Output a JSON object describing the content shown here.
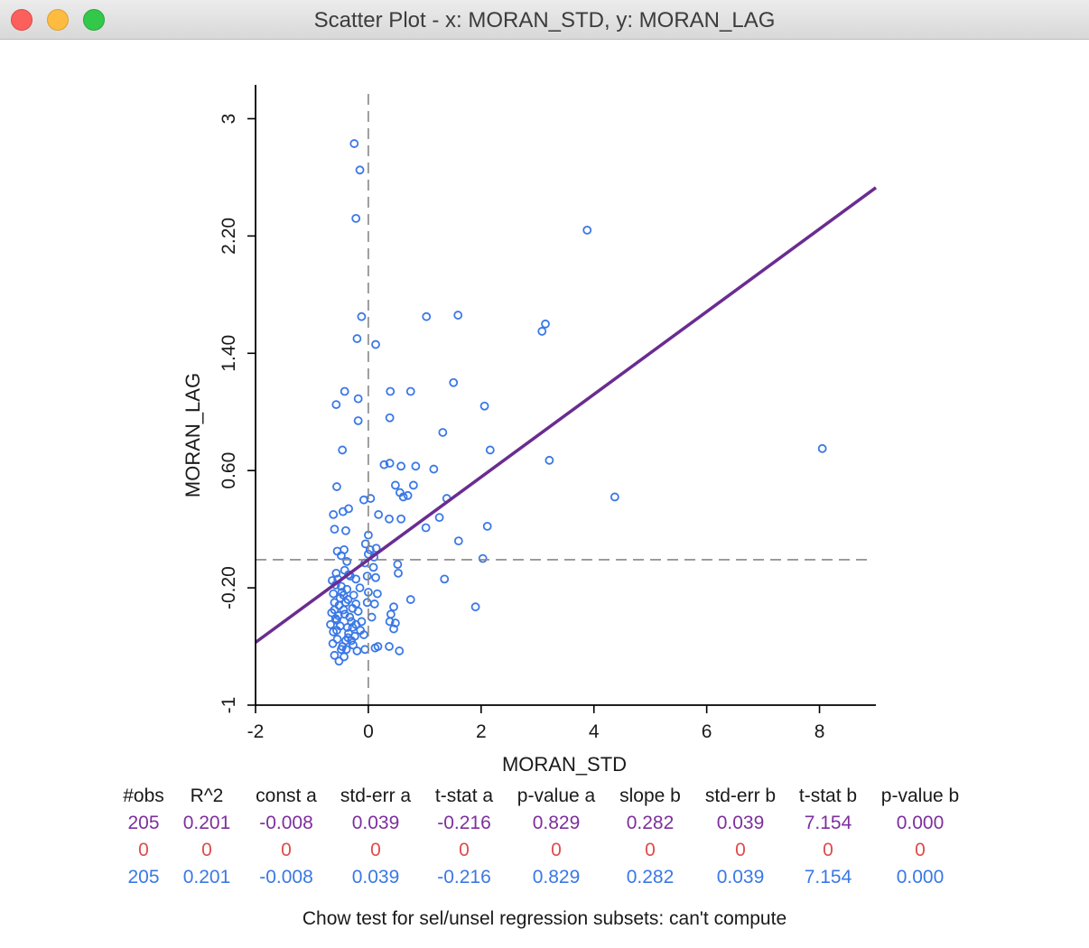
{
  "window": {
    "title": "Scatter Plot - x: MORAN_STD, y: MORAN_LAG"
  },
  "colors": {
    "points": "#3a78e6",
    "regression_line": "#6a2c91",
    "dashed_axes": "#888888",
    "row_all": "#7d2f9e",
    "row_selected": "#e04a4a",
    "row_unselected": "#3a78e6"
  },
  "chart_data": {
    "type": "scatter",
    "xlabel": "MORAN_STD",
    "ylabel": "MORAN_LAG",
    "xlim": [
      -2,
      9
    ],
    "ylim": [
      -1,
      3.2
    ],
    "x_ticks": [
      "-2",
      "0",
      "2",
      "4",
      "6",
      "8"
    ],
    "x_tick_values": [
      -2,
      0,
      2,
      4,
      6,
      8
    ],
    "y_ticks": [
      "-1",
      "-0.20",
      "0.60",
      "1.40",
      "2.20",
      "3"
    ],
    "y_tick_values": [
      -1,
      -0.2,
      0.6,
      1.4,
      2.2,
      3
    ],
    "mean_x": 0,
    "mean_y": -0.008,
    "regression": {
      "intercept": -0.008,
      "slope": 0.282
    },
    "points": [
      [
        -0.25,
        2.83
      ],
      [
        -0.15,
        2.65
      ],
      [
        -0.22,
        2.32
      ],
      [
        3.88,
        2.24
      ],
      [
        -0.12,
        1.65
      ],
      [
        1.03,
        1.65
      ],
      [
        1.59,
        1.66
      ],
      [
        3.14,
        1.6
      ],
      [
        3.08,
        1.55
      ],
      [
        -0.2,
        1.5
      ],
      [
        0.13,
        1.46
      ],
      [
        -0.42,
        1.14
      ],
      [
        -0.57,
        1.05
      ],
      [
        -0.18,
        1.09
      ],
      [
        0.39,
        1.14
      ],
      [
        0.75,
        1.14
      ],
      [
        1.51,
        1.2
      ],
      [
        2.06,
        1.04
      ],
      [
        0.38,
        0.96
      ],
      [
        -0.18,
        0.94
      ],
      [
        1.32,
        0.86
      ],
      [
        -0.46,
        0.74
      ],
      [
        2.16,
        0.74
      ],
      [
        8.05,
        0.75
      ],
      [
        0.28,
        0.64
      ],
      [
        0.38,
        0.65
      ],
      [
        0.58,
        0.63
      ],
      [
        0.84,
        0.63
      ],
      [
        1.16,
        0.61
      ],
      [
        3.21,
        0.67
      ],
      [
        -0.56,
        0.49
      ],
      [
        0.48,
        0.5
      ],
      [
        0.8,
        0.5
      ],
      [
        0.56,
        0.45
      ],
      [
        0.7,
        0.43
      ],
      [
        0.62,
        0.42
      ],
      [
        1.39,
        0.41
      ],
      [
        4.37,
        0.42
      ],
      [
        -0.08,
        0.4
      ],
      [
        0.04,
        0.41
      ],
      [
        -0.35,
        0.34
      ],
      [
        -0.45,
        0.32
      ],
      [
        -0.62,
        0.3
      ],
      [
        0.18,
        0.3
      ],
      [
        0.37,
        0.27
      ],
      [
        0.58,
        0.27
      ],
      [
        1.26,
        0.28
      ],
      [
        -0.6,
        0.2
      ],
      [
        -0.4,
        0.19
      ],
      [
        1.02,
        0.21
      ],
      [
        2.11,
        0.22
      ],
      [
        0.0,
        0.16
      ],
      [
        -0.05,
        0.1
      ],
      [
        0.03,
        0.06
      ],
      [
        1.6,
        0.12
      ],
      [
        0.14,
        0.07
      ],
      [
        -0.55,
        0.05
      ],
      [
        -0.43,
        0.06
      ],
      [
        -0.48,
        0.02
      ],
      [
        0.0,
        0.03
      ],
      [
        0.1,
        0.01
      ],
      [
        2.03,
        0.0
      ],
      [
        -0.38,
        -0.02
      ],
      [
        -0.06,
        -0.03
      ],
      [
        0.52,
        -0.04
      ],
      [
        0.09,
        -0.06
      ],
      [
        -0.57,
        -0.1
      ],
      [
        -0.35,
        -0.11
      ],
      [
        0.53,
        -0.1
      ],
      [
        -0.02,
        -0.12
      ],
      [
        0.13,
        -0.13
      ],
      [
        -0.22,
        -0.14
      ],
      [
        1.35,
        -0.14
      ],
      [
        -0.58,
        -0.18
      ],
      [
        -0.48,
        -0.19
      ],
      [
        -0.15,
        -0.2
      ],
      [
        -0.62,
        -0.24
      ],
      [
        -0.44,
        -0.25
      ],
      [
        0.0,
        -0.23
      ],
      [
        0.16,
        -0.24
      ],
      [
        -0.36,
        -0.28
      ],
      [
        -0.02,
        -0.3
      ],
      [
        0.75,
        -0.28
      ],
      [
        -0.6,
        -0.3
      ],
      [
        -0.52,
        -0.32
      ],
      [
        -0.28,
        -0.34
      ],
      [
        0.11,
        -0.31
      ],
      [
        -0.65,
        -0.37
      ],
      [
        -0.42,
        -0.38
      ],
      [
        -0.18,
        -0.36
      ],
      [
        0.45,
        -0.33
      ],
      [
        -0.58,
        -0.41
      ],
      [
        -0.3,
        -0.43
      ],
      [
        0.06,
        -0.4
      ],
      [
        0.38,
        -0.43
      ],
      [
        1.9,
        -0.33
      ],
      [
        -0.67,
        -0.45
      ],
      [
        -0.5,
        -0.46
      ],
      [
        -0.22,
        -0.45
      ],
      [
        0.4,
        -0.38
      ],
      [
        0.48,
        -0.44
      ],
      [
        -0.62,
        -0.5
      ],
      [
        -0.35,
        -0.51
      ],
      [
        -0.14,
        -0.49
      ],
      [
        0.45,
        -0.48
      ],
      [
        -0.55,
        -0.55
      ],
      [
        -0.4,
        -0.56
      ],
      [
        -0.08,
        -0.52
      ],
      [
        -0.63,
        -0.58
      ],
      [
        -0.46,
        -0.6
      ],
      [
        -0.27,
        -0.59
      ],
      [
        -0.6,
        -0.66
      ],
      [
        -0.43,
        -0.67
      ],
      [
        -0.2,
        -0.63
      ],
      [
        -0.06,
        -0.62
      ],
      [
        0.12,
        -0.61
      ],
      [
        0.17,
        -0.6
      ],
      [
        0.37,
        -0.6
      ],
      [
        0.55,
        -0.63
      ],
      [
        -0.52,
        -0.7
      ],
      [
        -0.48,
        -0.62
      ],
      [
        -0.3,
        -0.56
      ],
      [
        -0.37,
        -0.47
      ],
      [
        -0.56,
        -0.42
      ],
      [
        -0.44,
        -0.35
      ],
      [
        -0.5,
        -0.27
      ],
      [
        -0.38,
        -0.21
      ],
      [
        -0.54,
        -0.14
      ],
      [
        -0.42,
        -0.08
      ],
      [
        -0.64,
        -0.15
      ],
      [
        -0.32,
        -0.12
      ],
      [
        -0.26,
        -0.25
      ],
      [
        -0.22,
        -0.31
      ],
      [
        -0.33,
        -0.4
      ],
      [
        -0.12,
        -0.43
      ],
      [
        -0.56,
        -0.49
      ],
      [
        -0.39,
        -0.62
      ],
      [
        -0.24,
        -0.53
      ],
      [
        -0.6,
        -0.35
      ],
      [
        -0.47,
        -0.23
      ],
      [
        -0.4,
        -0.3
      ],
      [
        -0.53,
        -0.39
      ],
      [
        -0.28,
        -0.47
      ],
      [
        -0.36,
        -0.54
      ]
    ]
  },
  "stats": {
    "headers": [
      "#obs",
      "R^2",
      "const a",
      "std-err a",
      "t-stat a",
      "p-value a",
      "slope b",
      "std-err b",
      "t-stat b",
      "p-value b"
    ],
    "rows": [
      [
        "205",
        "0.201",
        "-0.008",
        "0.039",
        "-0.216",
        "0.829",
        "0.282",
        "0.039",
        "7.154",
        "0.000"
      ],
      [
        "0",
        "0",
        "0",
        "0",
        "0",
        "0",
        "0",
        "0",
        "0",
        "0"
      ],
      [
        "205",
        "0.201",
        "-0.008",
        "0.039",
        "-0.216",
        "0.829",
        "0.282",
        "0.039",
        "7.154",
        "0.000"
      ]
    ]
  },
  "chow": {
    "text": "Chow test for sel/unsel regression subsets: can't compute"
  }
}
